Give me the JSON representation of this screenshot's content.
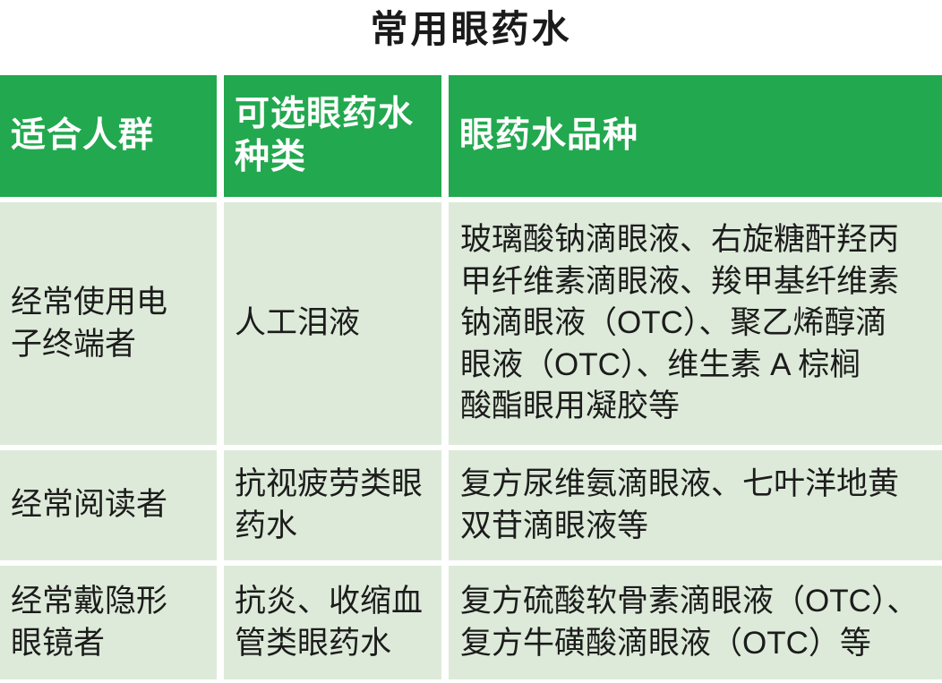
{
  "title": "常用眼药水",
  "colors": {
    "header_bg": "#22a84e",
    "header_text": "#ffffff",
    "cell_bg": "#ddead9",
    "body_text": "#1c1c1c",
    "page_bg": "#ffffff"
  },
  "chart_data": {
    "type": "table",
    "title": "常用眼药水",
    "columns": [
      "适合人群",
      "可选眼药水种类",
      "眼药水品种"
    ],
    "rows": [
      [
        "经常使用电子终端者",
        "人工泪液",
        "玻璃酸钠滴眼液、右旋糖酐羟丙甲纤维素滴眼液、羧甲基纤维素钠滴眼液（OTC）、聚乙烯醇滴眼液（OTC）、维生素 A 棕榈酸酯眼用凝胶等"
      ],
      [
        "经常阅读者",
        "抗视疲劳类眼药水",
        "复方尿维氨滴眼液、七叶洋地黄双苷滴眼液等"
      ],
      [
        "经常戴隐形眼镜者",
        "抗炎、收缩血管类眼药水",
        "复方硫酸软骨素滴眼液（OTC）、复方牛磺酸滴眼液（OTC）等"
      ]
    ]
  },
  "table": {
    "headers": {
      "population": "适合人群",
      "type": "可选眼药水\n种类",
      "products": "眼药水品种"
    },
    "rows": [
      {
        "population": "经常使用电\n子终端者",
        "type": "人工泪液",
        "products": "玻璃酸钠滴眼液、右旋糖酐羟丙\n甲纤维素滴眼液、羧甲基纤维素\n钠滴眼液（OTC）、聚乙烯醇滴\n眼液（OTC）、维生素 A 棕榈\n酸酯眼用凝胶等"
      },
      {
        "population": "经常阅读者",
        "type": "抗视疲劳类眼\n药水",
        "products": "复方尿维氨滴眼液、七叶洋地黄\n双苷滴眼液等"
      },
      {
        "population": "经常戴隐形\n眼镜者",
        "type": "抗炎、收缩血\n管类眼药水",
        "products": "复方硫酸软骨素滴眼液（OTC）、\n复方牛磺酸滴眼液（OTC）等"
      }
    ]
  }
}
